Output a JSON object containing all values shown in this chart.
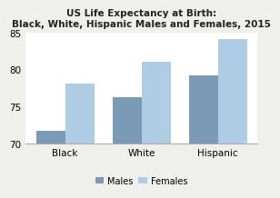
{
  "title": "US Life Expectancy at Birth:\nBlack, White, Hispanic Males and Females, 2015",
  "categories": [
    "Black",
    "White",
    "Hispanic"
  ],
  "males": [
    71.8,
    76.3,
    79.3
  ],
  "females": [
    78.1,
    81.1,
    84.2
  ],
  "male_color": "#7a9ab5",
  "female_color": "#aecce4",
  "ylim": [
    70,
    85
  ],
  "yticks": [
    70,
    75,
    80,
    85
  ],
  "legend_labels": [
    "Males",
    "Females"
  ],
  "title_fontsize": 7.5,
  "tick_fontsize": 7.5,
  "legend_fontsize": 7,
  "bar_width": 0.38,
  "background_color": "#efefeb",
  "plot_bg_color": "#ffffff"
}
